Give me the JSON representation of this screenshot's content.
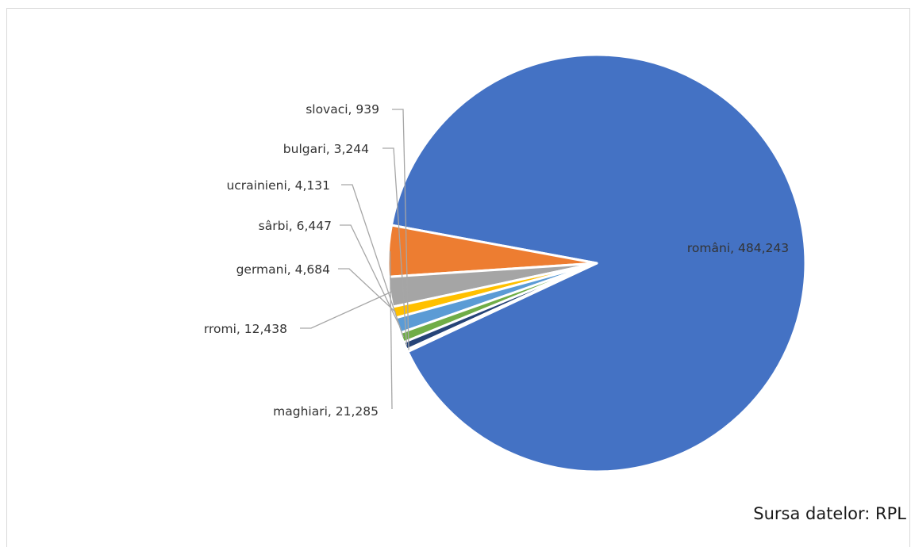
{
  "chart_data": {
    "type": "pie",
    "title": "",
    "categories": [
      "români",
      "maghiari",
      "rromi",
      "germani",
      "sârbi",
      "ucrainieni",
      "bulgari",
      "slovaci"
    ],
    "values": [
      484243,
      21285,
      12438,
      4684,
      6447,
      4131,
      3244,
      939
    ],
    "labels": [
      "români, 484,243",
      "maghiari, 21,285",
      "rromi, 12,438",
      "germani, 4,684",
      "sârbi, 6,447",
      "ucrainieni, 4,131",
      "bulgari, 3,244",
      "slovaci, 939"
    ],
    "colors": [
      "#4472C4",
      "#ED7D31",
      "#A5A5A5",
      "#FFC000",
      "#5B9BD5",
      "#70AD47",
      "#264478",
      "#9E480E"
    ],
    "legend": "none",
    "direction": "counterclockwise"
  },
  "source_note": "Sursa datelor: RPL"
}
